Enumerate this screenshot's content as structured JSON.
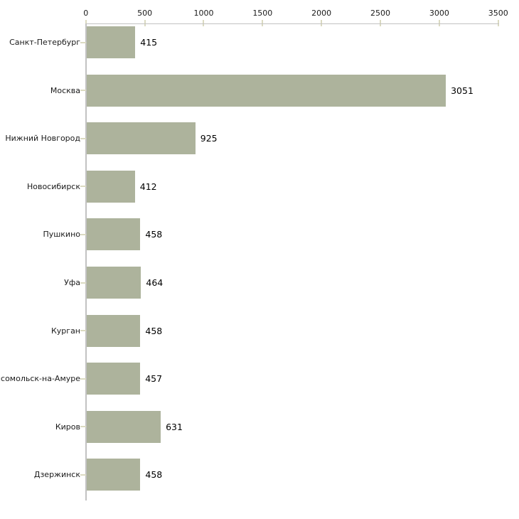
{
  "chart_data": {
    "type": "bar",
    "orientation": "horizontal",
    "title": "",
    "xlabel": "",
    "ylabel": "",
    "categories": [
      "Санкт-Петербург",
      "Москва",
      "Нижний Новгород",
      "Новосибирск",
      "Пушкино",
      "Уфа",
      "Курган",
      "мсомольск-на-Амуре",
      "Киров",
      "Дзержинск"
    ],
    "values": [
      415,
      3051,
      925,
      412,
      458,
      464,
      458,
      457,
      631,
      458
    ],
    "value_labels": [
      "415",
      "3051",
      "925",
      "412",
      "458",
      "464",
      "458",
      "457",
      "631",
      "458"
    ],
    "x_ticks": [
      "0",
      "500",
      "1000",
      "1500",
      "2000",
      "2500",
      "3000",
      "3500"
    ],
    "x_tick_values": [
      0,
      500,
      1000,
      1500,
      2000,
      2500,
      3000,
      3500
    ],
    "xlim": [
      0,
      3500
    ],
    "axis_position": "top",
    "grid": false,
    "legend": false,
    "colors": {
      "bar": "#adb39c",
      "axis_line": "#c2c2c2",
      "tick_mark": "#dbdac1",
      "text": "#1a1a1a",
      "background": "#ffffff"
    }
  }
}
